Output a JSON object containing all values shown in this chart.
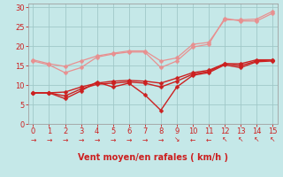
{
  "x": [
    0,
    1,
    2,
    3,
    4,
    5,
    6,
    7,
    8,
    9,
    10,
    11,
    12,
    13,
    14,
    15
  ],
  "series": [
    {
      "name": "light1",
      "color": "#e89090",
      "lw": 0.9,
      "y": [
        16.2,
        15.2,
        13.2,
        14.5,
        17.2,
        18.0,
        18.5,
        18.5,
        14.5,
        16.2,
        19.8,
        20.5,
        27.2,
        26.5,
        26.5,
        28.5
      ]
    },
    {
      "name": "light2",
      "color": "#e89090",
      "lw": 0.9,
      "y": [
        16.5,
        15.5,
        14.8,
        16.2,
        17.5,
        18.2,
        18.8,
        18.8,
        16.2,
        17.0,
        20.5,
        21.0,
        26.8,
        26.8,
        27.0,
        29.0
      ]
    },
    {
      "name": "dark1",
      "color": "#cc2020",
      "lw": 1.0,
      "y": [
        8.0,
        8.0,
        6.5,
        8.5,
        10.8,
        9.5,
        10.5,
        7.5,
        3.5,
        9.5,
        12.5,
        13.2,
        15.2,
        14.5,
        16.0,
        16.2
      ]
    },
    {
      "name": "dark2",
      "color": "#cc2020",
      "lw": 1.0,
      "y": [
        8.0,
        8.0,
        7.2,
        9.0,
        10.2,
        10.5,
        10.8,
        10.5,
        9.5,
        11.0,
        12.8,
        13.5,
        15.5,
        15.0,
        16.2,
        16.5
      ]
    },
    {
      "name": "dark3",
      "color": "#cc2020",
      "lw": 1.0,
      "y": [
        8.0,
        8.0,
        8.2,
        9.5,
        10.5,
        11.0,
        11.2,
        11.0,
        10.5,
        11.8,
        13.2,
        13.8,
        15.5,
        15.5,
        16.5,
        16.5
      ]
    }
  ],
  "xlabel": "Vent moyen/en rafales ( km/h )",
  "xlim": [
    -0.3,
    15.3
  ],
  "ylim": [
    0,
    31
  ],
  "yticks": [
    0,
    5,
    10,
    15,
    20,
    25,
    30
  ],
  "xticks": [
    0,
    1,
    2,
    3,
    4,
    5,
    6,
    7,
    8,
    9,
    10,
    11,
    12,
    13,
    14,
    15
  ],
  "bg_color": "#c5e8e8",
  "grid_color": "#a0c8c8",
  "text_color": "#cc2020",
  "spine_color": "#a0a0a0",
  "marker": "D",
  "marker_size": 2.5,
  "arrow_map": {
    "0": "→",
    "1": "→",
    "2": "→",
    "3": "→",
    "4": "→",
    "5": "→",
    "6": "→",
    "7": "→",
    "8": "→",
    "9": "↘",
    "10": "←",
    "11": "←",
    "12": "↖",
    "13": "↖",
    "14": "↖",
    "15": "↖"
  }
}
